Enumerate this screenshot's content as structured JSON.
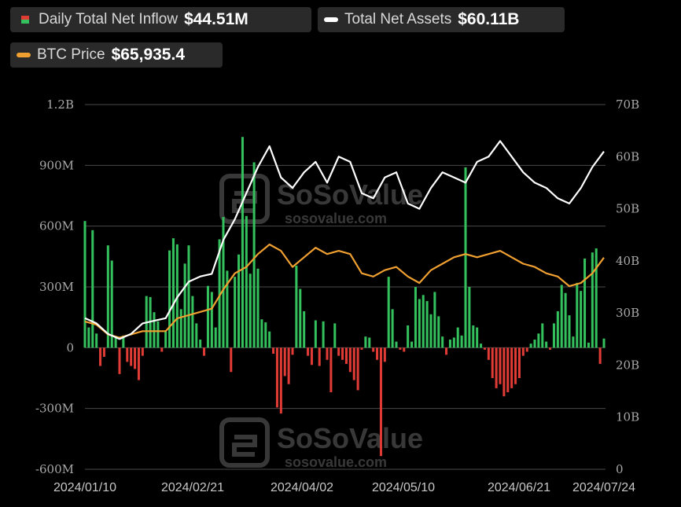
{
  "legend": {
    "inflow": {
      "label": "Daily Total Net Inflow",
      "value": "$44.51M"
    },
    "assets": {
      "label": "Total Net Assets",
      "value": "$60.11B"
    },
    "btc": {
      "label": "BTC Price",
      "value": "$65,935.4"
    }
  },
  "watermark": {
    "brand": "SoSoValue",
    "site": "sosovalue.com"
  },
  "colors": {
    "positive": "#34c05c",
    "negative": "#e03b35",
    "assets_line": "#ffffff",
    "btc_line": "#f0a030",
    "grid": "#4a4a4a",
    "pill_bg": "#2a2a2a"
  },
  "chart_data": {
    "type": "bar",
    "title": "",
    "left_axis": {
      "min": -600,
      "max": 1200,
      "unit": "M",
      "ticks": [
        "1.2B",
        "900M",
        "600M",
        "300M",
        "0",
        "-300M",
        "-600M"
      ]
    },
    "right_axis": {
      "min": 0,
      "max": 70,
      "unit": "B",
      "ticks": [
        "70B",
        "60B",
        "50B",
        "40B",
        "30B",
        "20B",
        "10B",
        "0"
      ]
    },
    "x_tick_labels": [
      "2024/01/10",
      "2024/02/21",
      "2024/04/02",
      "2024/05/10",
      "2024/06/21",
      "2024/07/24"
    ],
    "grid": "horizontal",
    "series": [
      {
        "name": "Daily Total Net Inflow",
        "type": "bar",
        "unit": "M USD",
        "axis": "left",
        "values": [
          625,
          100,
          580,
          70,
          -90,
          -45,
          505,
          430,
          50,
          -130,
          60,
          -70,
          -90,
          -105,
          -160,
          -40,
          255,
          250,
          175,
          130,
          -20,
          80,
          480,
          540,
          510,
          190,
          415,
          505,
          255,
          120,
          40,
          -40,
          305,
          275,
          100,
          535,
          645,
          380,
          -120,
          350,
          460,
          1040,
          650,
          365,
          915,
          390,
          140,
          125,
          80,
          -30,
          -295,
          -325,
          -140,
          -180,
          -35,
          405,
          290,
          180,
          -40,
          -85,
          135,
          -90,
          130,
          -60,
          -220,
          120,
          -40,
          -60,
          -80,
          -120,
          -160,
          -210,
          -10,
          55,
          50,
          -20,
          -60,
          -535,
          -70,
          350,
          190,
          30,
          -10,
          -20,
          110,
          30,
          300,
          240,
          260,
          230,
          165,
          275,
          155,
          55,
          -35,
          40,
          50,
          100,
          60,
          890,
          300,
          110,
          100,
          20,
          -10,
          -60,
          -150,
          -200,
          -180,
          -240,
          -220,
          -200,
          -180,
          -150,
          -40,
          -20,
          20,
          40,
          70,
          120,
          30,
          -10,
          120,
          180,
          310,
          270,
          160,
          55,
          320,
          280,
          440,
          25,
          470,
          490,
          -80,
          45
        ]
      },
      {
        "name": "Total Net Assets",
        "type": "line",
        "unit": "B USD",
        "axis": "right",
        "x": [
          0,
          3,
          6,
          9,
          12,
          15,
          18,
          21,
          24,
          27,
          30,
          33,
          36,
          39,
          42,
          45,
          48,
          51,
          54,
          57,
          60,
          63,
          66,
          69,
          72,
          75,
          78,
          81,
          84,
          87,
          90,
          93,
          96,
          99,
          102,
          105,
          108,
          111,
          114,
          117,
          120,
          123,
          126,
          129,
          132,
          135
        ],
        "values": [
          29,
          28,
          26,
          25,
          26,
          28,
          28.5,
          29,
          33,
          36,
          37,
          37.5,
          44,
          48,
          53,
          58,
          62,
          56,
          54,
          57,
          59,
          55,
          60,
          59,
          53,
          52,
          56,
          57,
          51,
          50,
          54,
          57,
          56,
          55,
          59,
          60,
          63,
          60,
          57,
          55,
          54,
          52,
          51,
          54,
          58,
          61
        ]
      },
      {
        "name": "BTC Price",
        "type": "line",
        "unit": "K USD",
        "axis": "right_scaled",
        "x": [
          0,
          3,
          6,
          9,
          12,
          15,
          18,
          21,
          24,
          27,
          30,
          33,
          36,
          39,
          42,
          45,
          48,
          51,
          54,
          57,
          60,
          63,
          66,
          69,
          72,
          75,
          78,
          81,
          84,
          87,
          90,
          93,
          96,
          99,
          102,
          105,
          108,
          111,
          114,
          117,
          120,
          123,
          126,
          129,
          132,
          135
        ],
        "values": [
          46,
          45,
          42,
          41,
          42,
          43,
          43,
          43,
          47,
          48,
          49,
          50,
          56,
          61,
          63,
          67,
          70,
          68,
          63,
          66,
          69,
          67,
          68,
          67,
          61,
          60,
          62,
          63,
          60,
          58,
          62,
          64,
          66,
          67,
          66,
          67,
          68,
          66,
          64,
          63,
          61,
          60,
          57,
          58,
          61,
          65.9
        ]
      }
    ]
  }
}
